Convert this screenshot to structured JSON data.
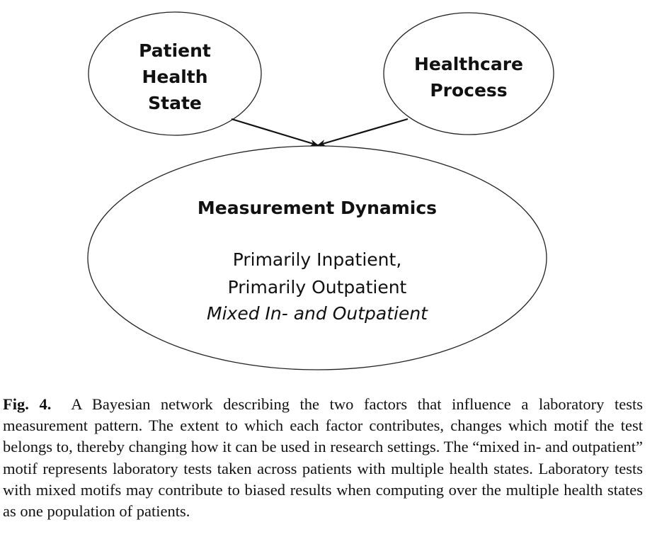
{
  "diagram": {
    "nodes": {
      "patient_health_state": {
        "lines": [
          "Patient",
          "Health",
          "State"
        ]
      },
      "healthcare_process": {
        "lines": [
          "Healthcare",
          "Process"
        ]
      },
      "measurement_dynamics": {
        "title": "Measurement Dynamics",
        "items": [
          "Primarily Inpatient,",
          "Primarily Outpatient",
          "Mixed In- and Outpatient"
        ]
      }
    },
    "edges": [
      {
        "from": "patient_health_state",
        "to": "measurement_dynamics"
      },
      {
        "from": "healthcare_process",
        "to": "measurement_dynamics"
      }
    ]
  },
  "caption": {
    "label": "Fig. 4.",
    "text": "A Bayesian network describing the two factors that influence a laboratory tests measurement pattern. The extent to which each factor contributes, changes which motif the test belongs to, thereby changing how it can be used in research settings. The “mixed in- and outpatient” motif represents laboratory tests taken across patients with multiple health states. Laboratory tests with mixed motifs may contribute to biased results when computing over the multiple health states as one population of patients."
  }
}
